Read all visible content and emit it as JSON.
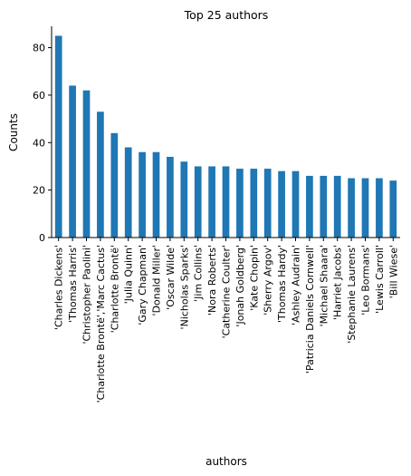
{
  "chart_data": {
    "type": "bar",
    "title": "Top 25 authors",
    "xlabel": "authors",
    "ylabel": "Counts",
    "ylim": [
      0,
      89
    ],
    "yticks": [
      0,
      20,
      40,
      60,
      80
    ],
    "bar_color": "#1f77b4",
    "categories": [
      "'Charles Dickens'",
      "'Thomas Harris'",
      "'Christopher Paolini'",
      "'Charlotte Brontë','Marc Cactus'",
      "'Charlotte Brontë'",
      "'Julia Quinn'",
      "'Gary Chapman'",
      "'Donald Miller'",
      "'Oscar Wilde'",
      "'Nicholas Sparks'",
      "'Jim Collins'",
      "'Nora Roberts'",
      "'Catherine Coulter'",
      "'Jonah Goldberg'",
      "'Kate Chopin'",
      "'Sherry Argov'",
      "'Thomas Hardy'",
      "'Ashley Audrain'",
      "'Patricia Daniels Cornwell'",
      "'Michael Shaara'",
      "'Harriet Jacobs'",
      "'Stephanie Laurens'",
      "'Leo Bormans'",
      "'Lewis Carroll'",
      "'Bill Wiese'"
    ],
    "values": [
      85,
      64,
      62,
      53,
      44,
      38,
      36,
      36,
      34,
      32,
      30,
      30,
      30,
      29,
      29,
      29,
      28,
      28,
      26,
      26,
      26,
      25,
      25,
      25,
      24
    ],
    "grid": false,
    "legend": "none"
  }
}
